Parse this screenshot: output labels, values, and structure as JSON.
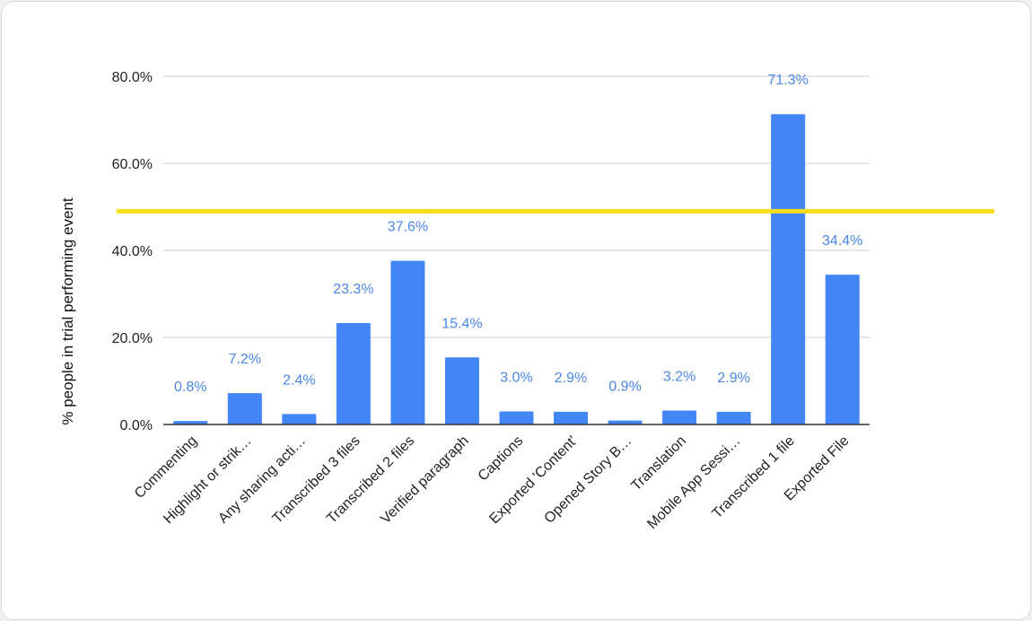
{
  "chart_data": {
    "type": "bar",
    "title": "",
    "xlabel": "",
    "ylabel": "% people in trial performing event",
    "ylim": [
      0,
      80
    ],
    "yticks": [
      "0.0%",
      "20.0%",
      "40.0%",
      "60.0%",
      "80.0%"
    ],
    "yticks_values": [
      0,
      20,
      40,
      60,
      80
    ],
    "grid": true,
    "legend": "none",
    "categories": [
      "Commenting",
      "Highlight or strik…",
      "Any sharing acti…",
      "Transcribed 3 files",
      "Transcribed 2 files",
      "Verified paragraph",
      "Captions",
      "Exported 'Content'",
      "Opened Story B…",
      "Translation",
      "Mobile App Sessi…",
      "Transcribed 1 file",
      "Exported File"
    ],
    "values": [
      0.8,
      7.2,
      2.4,
      23.3,
      37.6,
      15.4,
      3.0,
      2.9,
      0.9,
      3.2,
      2.9,
      71.3,
      34.4
    ],
    "data_labels": [
      "0.8%",
      "7.2%",
      "2.4%",
      "23.3%",
      "37.6%",
      "15.4%",
      "3.0%",
      "2.9%",
      "0.9%",
      "3.2%",
      "2.9%",
      "71.3%",
      "34.4%"
    ],
    "reference_line": {
      "value": 49,
      "color": "#f5dd1f"
    },
    "colors": {
      "bar": "#4285f4",
      "data_label": "#4a86e8",
      "grid": "#cccccc",
      "axis": "#333333"
    }
  }
}
